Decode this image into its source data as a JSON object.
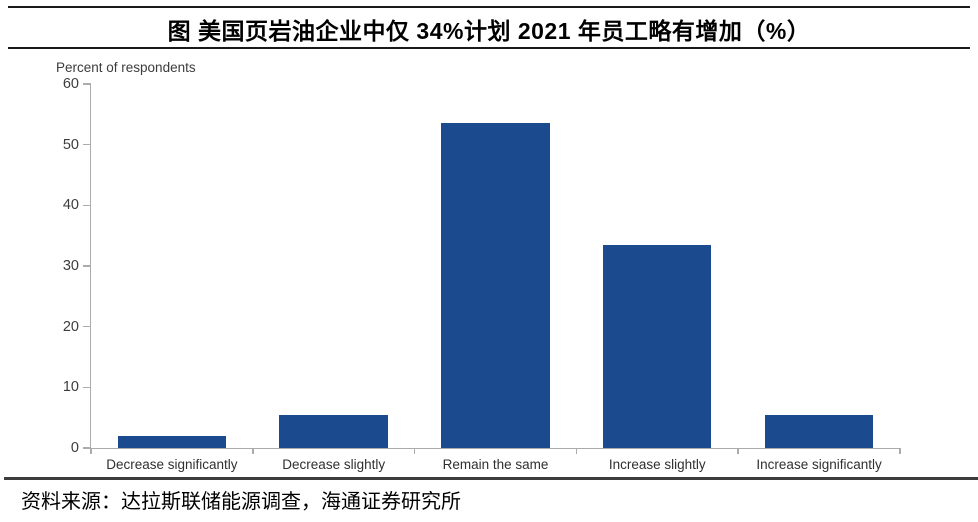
{
  "header": {
    "title": "图  美国页岩油企业中仅 34%计划 2021 年员工略有增加（%）"
  },
  "footer": {
    "source": "资料来源：达拉斯联储能源调查，海通证券研究所"
  },
  "chart_data": {
    "type": "bar",
    "title": "图  美国页岩油企业中仅 34%计划 2021 年员工略有增加（%）",
    "y_axis_title": "Percent of respondents",
    "categories": [
      "Decrease significantly",
      "Decrease slightly",
      "Remain the same",
      "Increase slightly",
      "Increase significantly"
    ],
    "values": [
      2,
      5.5,
      53.5,
      33.5,
      5.5
    ],
    "xlabel": "",
    "ylabel": "Percent of respondents",
    "ylim": [
      0,
      60
    ],
    "y_ticks": [
      0,
      10,
      20,
      30,
      40,
      50,
      60
    ],
    "grid": false,
    "legend": "none",
    "bar_color": "#1B4A8E",
    "axis_color": "#ababab",
    "tick_label_color": "#3c3c3c"
  }
}
